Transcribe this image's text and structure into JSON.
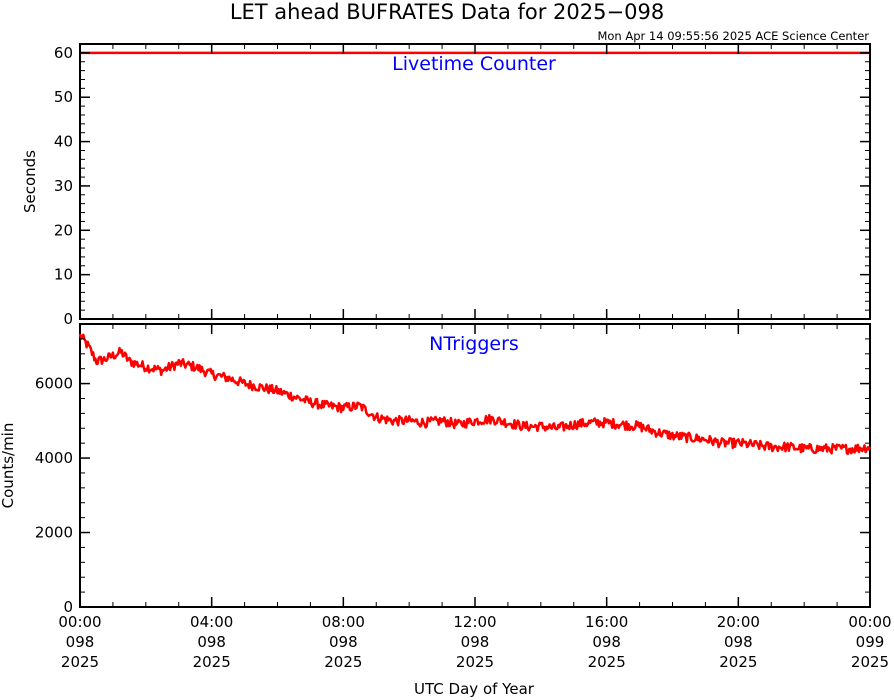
{
  "header": {
    "title": "LET ahead BUFRATES Data for 2025−098",
    "timestamp": "Mon Apr 14 09:55:56 2025 ACE Science Center"
  },
  "colors": {
    "series": "#ff0000",
    "panel_label": "#0000ff",
    "axes": "#000000"
  },
  "chart_data": [
    {
      "type": "line",
      "title": "Livetime Counter",
      "ylabel": "Seconds",
      "xlabel": "",
      "ylim": [
        0,
        62
      ],
      "yticks": [
        0,
        10,
        20,
        30,
        40,
        50,
        60
      ],
      "ytick_labels": [
        "0",
        "10",
        "20",
        "30",
        "40",
        "50",
        "60"
      ],
      "xlim_hours": [
        0,
        24
      ],
      "series": [
        {
          "x_hours": [
            0,
            24
          ],
          "values": [
            60,
            60
          ]
        }
      ]
    },
    {
      "type": "line",
      "title": "NTriggers",
      "ylabel": "Counts/min",
      "xlabel": "UTC Day of Year",
      "ylim": [
        0,
        7600
      ],
      "yticks": [
        0,
        2000,
        4000,
        6000
      ],
      "ytick_labels": [
        "0",
        "2000",
        "4000",
        "6000"
      ],
      "xlim_hours": [
        0,
        24
      ],
      "xtick_hours": [
        0,
        4,
        8,
        12,
        16,
        20,
        24
      ],
      "xtick_labels": [
        [
          "00:00",
          "098",
          "2025"
        ],
        [
          "04:00",
          "098",
          "2025"
        ],
        [
          "08:00",
          "098",
          "2025"
        ],
        [
          "12:00",
          "098",
          "2025"
        ],
        [
          "16:00",
          "098",
          "2025"
        ],
        [
          "20:00",
          "098",
          "2025"
        ],
        [
          "00:00",
          "099",
          "2025"
        ]
      ],
      "series": [
        {
          "x_hours": [
            0,
            0.25,
            0.5,
            0.75,
            1.0,
            1.25,
            1.5,
            2.0,
            2.5,
            3.0,
            3.5,
            4.0,
            4.5,
            5.0,
            5.5,
            6.0,
            6.5,
            7.0,
            7.5,
            8.0,
            8.5,
            9.0,
            9.5,
            10.0,
            10.5,
            11.0,
            11.5,
            12.0,
            12.5,
            13.0,
            13.5,
            14.0,
            14.5,
            15.0,
            15.5,
            16.0,
            16.5,
            17.0,
            17.5,
            18.0,
            18.5,
            19.0,
            19.5,
            20.0,
            20.5,
            21.0,
            21.5,
            22.0,
            22.5,
            23.0,
            23.5,
            24.0
          ],
          "values": [
            7300,
            7000,
            6600,
            6650,
            6750,
            6850,
            6600,
            6450,
            6350,
            6550,
            6450,
            6250,
            6150,
            6000,
            5900,
            5800,
            5650,
            5500,
            5400,
            5350,
            5400,
            5100,
            5000,
            5000,
            4950,
            5000,
            4900,
            5000,
            5050,
            4950,
            4850,
            4850,
            4800,
            4900,
            4950,
            4950,
            4900,
            4850,
            4700,
            4600,
            4550,
            4500,
            4400,
            4400,
            4350,
            4300,
            4300,
            4250,
            4250,
            4250,
            4250,
            4300
          ]
        }
      ]
    }
  ]
}
